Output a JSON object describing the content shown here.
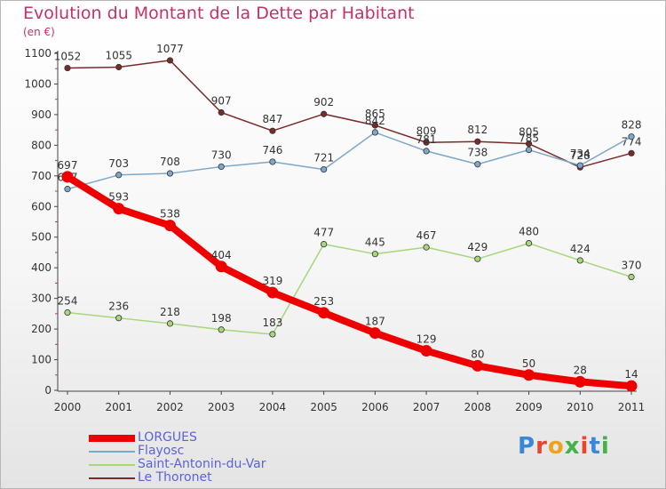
{
  "title": "Evolution du Montant de la Dette par Habitant",
  "subtitle": "(en €)",
  "logo": {
    "text": "Proxiti",
    "colors": [
      "#3a86d8",
      "#e8442e",
      "#f0a21e",
      "#46b04a",
      "#e8442e",
      "#3a86d8",
      "#46b04a"
    ]
  },
  "chart_data": {
    "type": "line",
    "x": [
      "2000",
      "2001",
      "2002",
      "2003",
      "2004",
      "2005",
      "2006",
      "2007",
      "2008",
      "2009",
      "2010",
      "2011"
    ],
    "ylim": [
      0,
      1100
    ],
    "yticks": [
      "0",
      "100",
      "200",
      "300",
      "400",
      "500",
      "600",
      "700",
      "800",
      "900",
      "1000",
      "1100"
    ],
    "grid": false,
    "legend_position": "bottom-left",
    "series": [
      {
        "name": "Le Thoronet",
        "color": "#7a2a2a",
        "thick": false,
        "values": [
          1052,
          1055,
          1077,
          907,
          847,
          902,
          865,
          809,
          812,
          805,
          728,
          774
        ]
      },
      {
        "name": "Flayosc",
        "color": "#7fa8c8",
        "thick": false,
        "values": [
          657,
          703,
          708,
          730,
          746,
          721,
          842,
          781,
          738,
          785,
          734,
          828
        ]
      },
      {
        "name": "Saint-Antonin-du-Var",
        "color": "#a6d77a",
        "thick": false,
        "values": [
          254,
          236,
          218,
          198,
          183,
          477,
          445,
          467,
          429,
          480,
          424,
          370
        ]
      },
      {
        "name": "LORGUES",
        "color": "#ee0000",
        "thick": true,
        "values": [
          697,
          593,
          538,
          404,
          319,
          253,
          187,
          129,
          80,
          50,
          28,
          14
        ]
      }
    ],
    "legend_order": [
      "LORGUES",
      "Flayosc",
      "Saint-Antonin-du-Var",
      "Le Thoronet"
    ]
  }
}
